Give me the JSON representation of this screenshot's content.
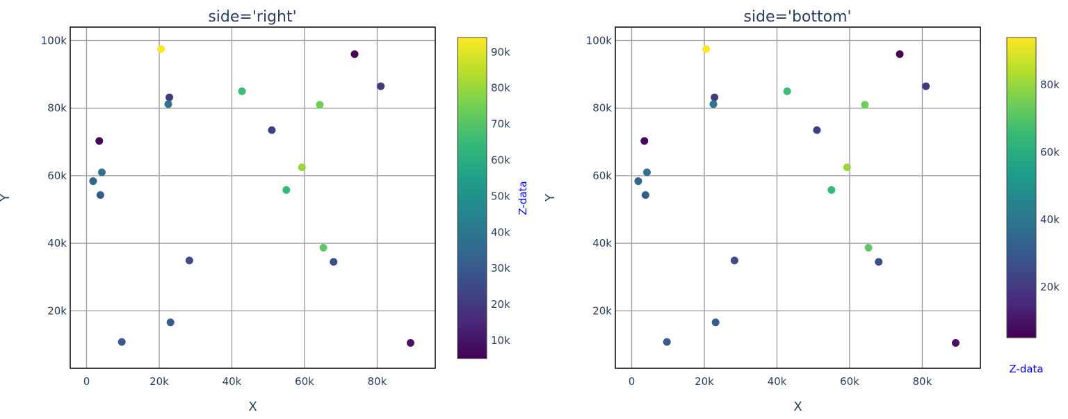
{
  "chart_data": [
    {
      "type": "scatter",
      "title": "side='right'",
      "xlabel": "X",
      "ylabel": "Y",
      "xlim": [
        -4500,
        96000
      ],
      "ylim": [
        3000,
        104000
      ],
      "x_ticks": [
        0,
        20000,
        40000,
        60000,
        80000
      ],
      "x_tick_labels": [
        "0",
        "20k",
        "40k",
        "60k",
        "80k"
      ],
      "y_ticks": [
        20000,
        40000,
        60000,
        80000,
        100000
      ],
      "y_tick_labels": [
        "20k",
        "40k",
        "60k",
        "80k",
        "100k"
      ],
      "grid": true,
      "colorscale": "Viridis",
      "colorbar": {
        "title": "Z-data",
        "title_side": "right",
        "range": [
          5000,
          94000
        ],
        "ticks": [
          10000,
          20000,
          30000,
          40000,
          50000,
          60000,
          70000,
          80000,
          90000
        ],
        "tick_labels": [
          "10k",
          "20k",
          "30k",
          "40k",
          "50k",
          "60k",
          "70k",
          "80k",
          "90k"
        ]
      },
      "points": [
        {
          "x": 20500,
          "y": 97500,
          "z": 94000
        },
        {
          "x": 73800,
          "y": 96000,
          "z": 5000
        },
        {
          "x": 81000,
          "y": 86500,
          "z": 20000
        },
        {
          "x": 42800,
          "y": 85000,
          "z": 66000
        },
        {
          "x": 22800,
          "y": 83200,
          "z": 20000
        },
        {
          "x": 22500,
          "y": 81200,
          "z": 40000
        },
        {
          "x": 64200,
          "y": 81000,
          "z": 74000
        },
        {
          "x": 51000,
          "y": 73500,
          "z": 22000
        },
        {
          "x": 3500,
          "y": 70300,
          "z": 6000
        },
        {
          "x": 59300,
          "y": 62500,
          "z": 80000
        },
        {
          "x": 4200,
          "y": 61000,
          "z": 38000
        },
        {
          "x": 1800,
          "y": 58400,
          "z": 35000
        },
        {
          "x": 55000,
          "y": 55800,
          "z": 65000
        },
        {
          "x": 3800,
          "y": 54300,
          "z": 30000
        },
        {
          "x": 65200,
          "y": 38700,
          "z": 72000
        },
        {
          "x": 28300,
          "y": 34900,
          "z": 25000
        },
        {
          "x": 68000,
          "y": 34500,
          "z": 27000
        },
        {
          "x": 23100,
          "y": 16600,
          "z": 31000
        },
        {
          "x": 9700,
          "y": 10800,
          "z": 30000
        },
        {
          "x": 89200,
          "y": 10500,
          "z": 9000
        }
      ]
    },
    {
      "type": "scatter",
      "title": "side='bottom'",
      "xlabel": "X",
      "ylabel": "Y",
      "xlim": [
        -4500,
        96000
      ],
      "ylim": [
        3000,
        104000
      ],
      "x_ticks": [
        0,
        20000,
        40000,
        60000,
        80000
      ],
      "x_tick_labels": [
        "0",
        "20k",
        "40k",
        "60k",
        "80k"
      ],
      "y_ticks": [
        20000,
        40000,
        60000,
        80000,
        100000
      ],
      "y_tick_labels": [
        "20k",
        "40k",
        "60k",
        "80k",
        "100k"
      ],
      "grid": true,
      "colorscale": "Viridis",
      "colorbar": {
        "title": "Z-data",
        "title_side": "bottom",
        "range": [
          5000,
          94000
        ],
        "ticks": [
          20000,
          40000,
          60000,
          80000
        ],
        "tick_labels": [
          "20k",
          "40k",
          "60k",
          "80k"
        ]
      },
      "points": [
        {
          "x": 20500,
          "y": 97500,
          "z": 94000
        },
        {
          "x": 73800,
          "y": 96000,
          "z": 5000
        },
        {
          "x": 81000,
          "y": 86500,
          "z": 20000
        },
        {
          "x": 42800,
          "y": 85000,
          "z": 66000
        },
        {
          "x": 22800,
          "y": 83200,
          "z": 20000
        },
        {
          "x": 22500,
          "y": 81200,
          "z": 40000
        },
        {
          "x": 64200,
          "y": 81000,
          "z": 74000
        },
        {
          "x": 51000,
          "y": 73500,
          "z": 22000
        },
        {
          "x": 3500,
          "y": 70300,
          "z": 6000
        },
        {
          "x": 59300,
          "y": 62500,
          "z": 80000
        },
        {
          "x": 4200,
          "y": 61000,
          "z": 38000
        },
        {
          "x": 1800,
          "y": 58400,
          "z": 35000
        },
        {
          "x": 55000,
          "y": 55800,
          "z": 65000
        },
        {
          "x": 3800,
          "y": 54300,
          "z": 30000
        },
        {
          "x": 65200,
          "y": 38700,
          "z": 72000
        },
        {
          "x": 28300,
          "y": 34900,
          "z": 25000
        },
        {
          "x": 68000,
          "y": 34500,
          "z": 27000
        },
        {
          "x": 23100,
          "y": 16600,
          "z": 31000
        },
        {
          "x": 9700,
          "y": 10800,
          "z": 30000
        },
        {
          "x": 89200,
          "y": 10500,
          "z": 9000
        }
      ]
    }
  ],
  "colors": {
    "text": "#2a3f5f",
    "colorbar_title": "#0000ff",
    "grid": "#999999",
    "frame": "#000000"
  }
}
